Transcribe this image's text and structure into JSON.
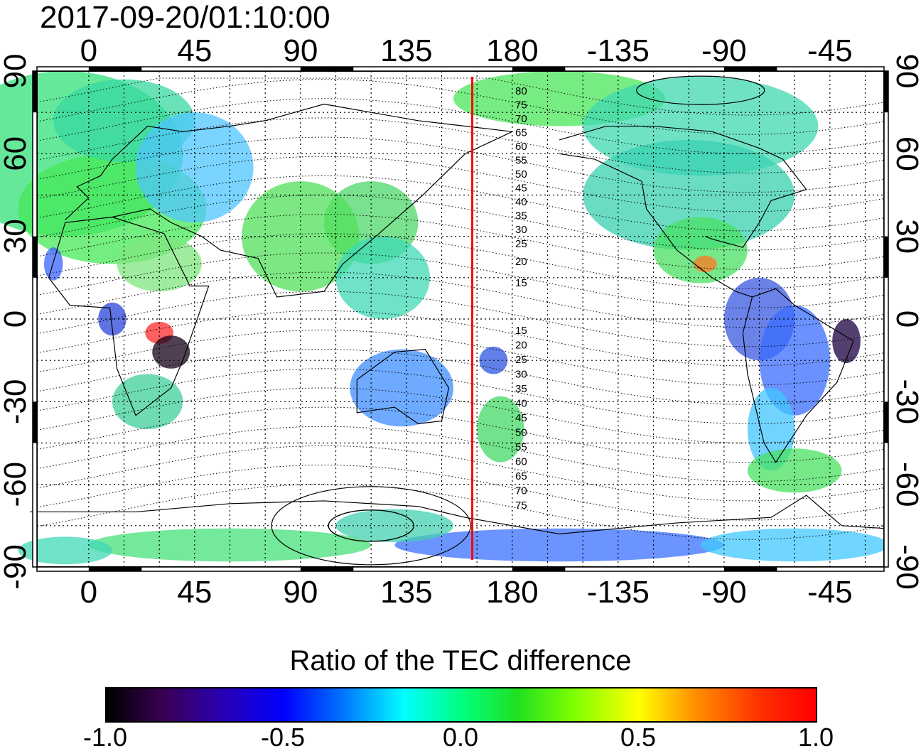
{
  "title": "2017-09-20/01:10:00",
  "colorbar": {
    "label": "Ratio of the TEC difference",
    "ticks": [
      "-1.0",
      "-0.5",
      "0.0",
      "0.5",
      "1.0"
    ],
    "min": -1.0,
    "max": 1.0,
    "colors": [
      "#000000",
      "#2a00b0",
      "#0000ff",
      "#00ffff",
      "#00ff80",
      "#80ff00",
      "#ffff00",
      "#ff9000",
      "#ff0000"
    ]
  },
  "map": {
    "lon_ticks": [
      "0",
      "45",
      "90",
      "135",
      "180",
      "-135",
      "-90",
      "-45"
    ],
    "lon_values": [
      0,
      45,
      90,
      135,
      180,
      225,
      270,
      315
    ],
    "lat_ticks": [
      "90",
      "60",
      "30",
      "0",
      "-30",
      "-60",
      "-90"
    ],
    "lat_values": [
      90,
      60,
      30,
      0,
      -30,
      -60,
      -90
    ],
    "lon_range": [
      -22,
      338
    ],
    "lat_range": [
      -90,
      90
    ],
    "gridlines": true,
    "terminator_lon": 163,
    "terminator_color": "#ff0000",
    "contour_labels_north": [
      "80",
      "75",
      "70",
      "65",
      "60",
      "55",
      "50",
      "45",
      "40",
      "35",
      "30",
      "25",
      "20",
      "15"
    ],
    "contour_labels_south": [
      "15",
      "20",
      "25",
      "30",
      "35",
      "40",
      "45",
      "50",
      "55",
      "60",
      "65",
      "70",
      "75"
    ]
  }
}
